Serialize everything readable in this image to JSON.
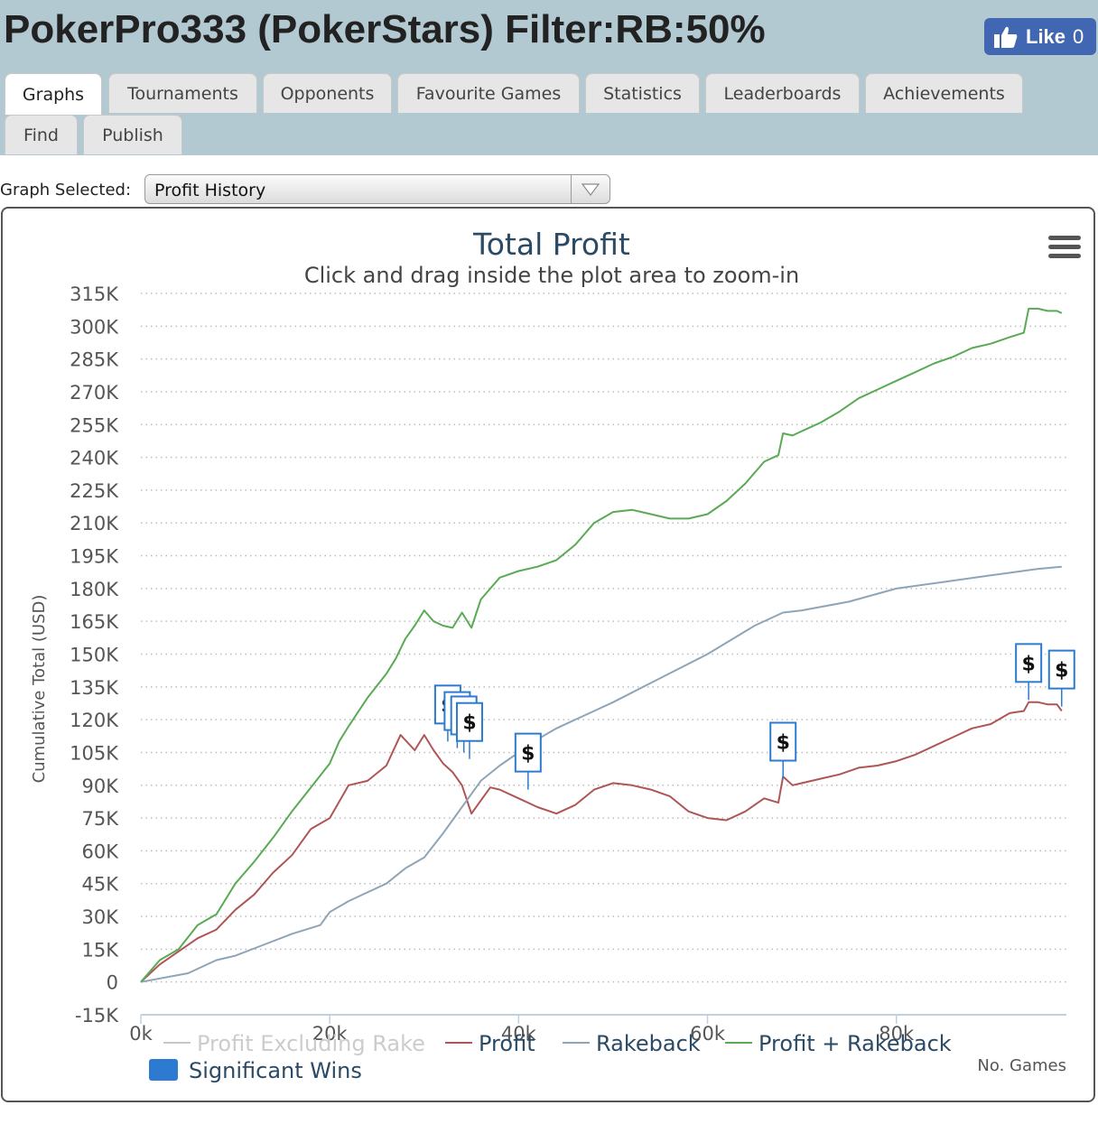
{
  "header": {
    "title": "PokerPro333 (PokerStars) Filter:RB:50%",
    "like_label": "Like",
    "like_count": "0"
  },
  "tabs": [
    {
      "label": "Graphs",
      "active": true
    },
    {
      "label": "Tournaments"
    },
    {
      "label": "Opponents"
    },
    {
      "label": "Favourite Games"
    },
    {
      "label": "Statistics"
    },
    {
      "label": "Leaderboards"
    },
    {
      "label": "Achievements"
    },
    {
      "label": "Find"
    },
    {
      "label": "Publish"
    }
  ],
  "graph_select": {
    "label": "Graph Selected:",
    "value": "Profit History"
  },
  "chart_data": {
    "type": "line",
    "title": "Total Profit",
    "subtitle": "Click and drag inside the plot area to zoom-in",
    "ylabel": "Cumulative Total (USD)",
    "xlabel": "No. Games",
    "xlim": [
      0,
      98000
    ],
    "ylim": [
      -15000,
      315000
    ],
    "y_ticks": [
      "315K",
      "300K",
      "285K",
      "270K",
      "255K",
      "240K",
      "225K",
      "210K",
      "195K",
      "180K",
      "165K",
      "150K",
      "135K",
      "120K",
      "105K",
      "90K",
      "75K",
      "60K",
      "45K",
      "30K",
      "15K",
      "0",
      "-15K"
    ],
    "y_tick_values": [
      315000,
      300000,
      285000,
      270000,
      255000,
      240000,
      225000,
      210000,
      195000,
      180000,
      165000,
      150000,
      135000,
      120000,
      105000,
      90000,
      75000,
      60000,
      45000,
      30000,
      15000,
      0,
      -15000
    ],
    "x_ticks": [
      "0k",
      "20k",
      "40k",
      "60k",
      "80k"
    ],
    "x_tick_values": [
      0,
      20000,
      40000,
      60000,
      80000
    ],
    "grid": true,
    "legend_position": "bottom",
    "series": [
      {
        "name": "Profit Excluding Rake",
        "color": "#c8c8c8",
        "hidden": true,
        "x": [],
        "y": []
      },
      {
        "name": "Profit",
        "color": "#b05555",
        "x": [
          0,
          2000,
          4000,
          6000,
          8000,
          10000,
          12000,
          14000,
          16000,
          18000,
          20000,
          22000,
          24000,
          26000,
          27500,
          29000,
          30000,
          31000,
          32000,
          33000,
          34000,
          35000,
          36000,
          37000,
          38000,
          40000,
          42000,
          44000,
          46000,
          48000,
          50000,
          52000,
          54000,
          56000,
          58000,
          60000,
          62000,
          64000,
          66000,
          67500,
          68000,
          69000,
          70000,
          72000,
          74000,
          76000,
          78000,
          80000,
          82000,
          84000,
          86000,
          88000,
          90000,
          92000,
          93500,
          94000,
          95000,
          96000,
          97000,
          97500
        ],
        "y": [
          0,
          8000,
          14000,
          20000,
          24000,
          33000,
          40000,
          50000,
          58000,
          70000,
          75000,
          90000,
          92000,
          99000,
          113000,
          106000,
          113000,
          106000,
          100000,
          96000,
          90000,
          77000,
          83000,
          89000,
          88000,
          84000,
          80000,
          77000,
          81000,
          88000,
          91000,
          90000,
          88000,
          85000,
          78000,
          75000,
          74000,
          78000,
          84000,
          82000,
          94000,
          90000,
          91000,
          93000,
          95000,
          98000,
          99000,
          101000,
          104000,
          108000,
          112000,
          116000,
          118000,
          123000,
          124000,
          128000,
          128000,
          127000,
          127000,
          124000
        ]
      },
      {
        "name": "Rakeback",
        "color": "#8fa5b7",
        "x": [
          0,
          5000,
          8000,
          10000,
          13000,
          16000,
          19000,
          20000,
          22000,
          24000,
          26000,
          28000,
          30000,
          32000,
          34000,
          36000,
          38000,
          40000,
          42000,
          44000,
          46000,
          48000,
          50000,
          55000,
          60000,
          65000,
          68000,
          70000,
          75000,
          80000,
          85000,
          90000,
          95000,
          97500
        ],
        "y": [
          0,
          4000,
          10000,
          12000,
          17000,
          22000,
          26000,
          32000,
          37000,
          41000,
          45000,
          52000,
          57000,
          68000,
          80000,
          92000,
          99000,
          105000,
          111000,
          116000,
          120000,
          124000,
          128000,
          139000,
          150000,
          163000,
          169000,
          170000,
          174000,
          180000,
          183000,
          186000,
          189000,
          190000
        ]
      },
      {
        "name": "Profit + Rakeback",
        "color": "#5aaa55",
        "x": [
          0,
          2000,
          4000,
          6000,
          8000,
          10000,
          12000,
          14000,
          16000,
          18000,
          20000,
          21000,
          22000,
          24000,
          26000,
          27000,
          28000,
          29000,
          30000,
          31000,
          32000,
          33000,
          34000,
          35000,
          36000,
          37000,
          38000,
          40000,
          42000,
          44000,
          46000,
          48000,
          50000,
          52000,
          54000,
          56000,
          58000,
          60000,
          62000,
          64000,
          66000,
          67500,
          68000,
          69000,
          70000,
          72000,
          74000,
          76000,
          78000,
          80000,
          82000,
          84000,
          86000,
          88000,
          90000,
          92000,
          93500,
          94000,
          95000,
          96000,
          97000,
          97500
        ],
        "y": [
          0,
          10000,
          15000,
          26000,
          31000,
          45000,
          55000,
          66000,
          78000,
          89000,
          100000,
          110000,
          117000,
          130000,
          141000,
          148000,
          157000,
          163000,
          170000,
          165000,
          163000,
          162000,
          169000,
          162000,
          175000,
          180000,
          185000,
          188000,
          190000,
          193000,
          200000,
          210000,
          215000,
          216000,
          214000,
          212000,
          212000,
          214000,
          220000,
          228000,
          238000,
          241000,
          251000,
          250000,
          252000,
          256000,
          261000,
          267000,
          271000,
          275000,
          279000,
          283000,
          286000,
          290000,
          292000,
          295000,
          297000,
          308000,
          308000,
          307000,
          307000,
          306000
        ]
      }
    ],
    "significant_wins": {
      "name": "Significant Wins",
      "color": "#2c7bd0",
      "flag_label": "$",
      "points": [
        {
          "x": 32500,
          "y": 110000
        },
        {
          "x": 33500,
          "y": 107000
        },
        {
          "x": 34200,
          "y": 105000
        },
        {
          "x": 34800,
          "y": 102000
        },
        {
          "x": 41000,
          "y": 88000
        },
        {
          "x": 68000,
          "y": 93000
        },
        {
          "x": 94000,
          "y": 129000
        },
        {
          "x": 97500,
          "y": 126000
        }
      ]
    },
    "menu_icon": "hamburger-menu-icon"
  }
}
